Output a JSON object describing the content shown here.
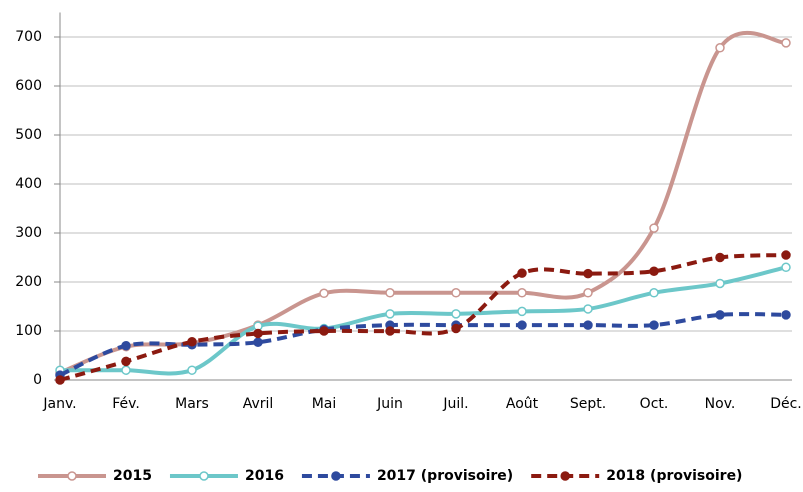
{
  "chart_data": {
    "type": "line",
    "categories": [
      "Janv.",
      "Fév.",
      "Mars",
      "Avril",
      "Mai",
      "Juin",
      "Juil.",
      "Août",
      "Sept.",
      "Oct.",
      "Nov.",
      "Déc."
    ],
    "series": [
      {
        "name": "2015",
        "color": "#c9958f",
        "dashed": false,
        "filled_markers": false,
        "values": [
          15,
          68,
          75,
          112,
          177,
          178,
          178,
          178,
          178,
          310,
          678,
          688
        ]
      },
      {
        "name": "2016",
        "color": "#6cc7c9",
        "dashed": false,
        "filled_markers": false,
        "values": [
          20,
          20,
          20,
          110,
          105,
          135,
          135,
          140,
          145,
          178,
          197,
          230
        ]
      },
      {
        "name": "2017 (provisoire)",
        "color": "#2e4a9e",
        "dashed": true,
        "filled_markers": true,
        "values": [
          10,
          70,
          72,
          77,
          103,
          112,
          112,
          112,
          112,
          112,
          133,
          133
        ]
      },
      {
        "name": "2018 (provisoire)",
        "color": "#8b1a10",
        "dashed": true,
        "filled_markers": true,
        "values": [
          0,
          38,
          78,
          95,
          100,
          100,
          105,
          218,
          217,
          222,
          250,
          255
        ]
      }
    ],
    "ylim": [
      0,
      750
    ],
    "yticks": [
      0,
      100,
      200,
      300,
      400,
      500,
      600,
      700
    ],
    "grid": true,
    "legend": "bottom"
  }
}
